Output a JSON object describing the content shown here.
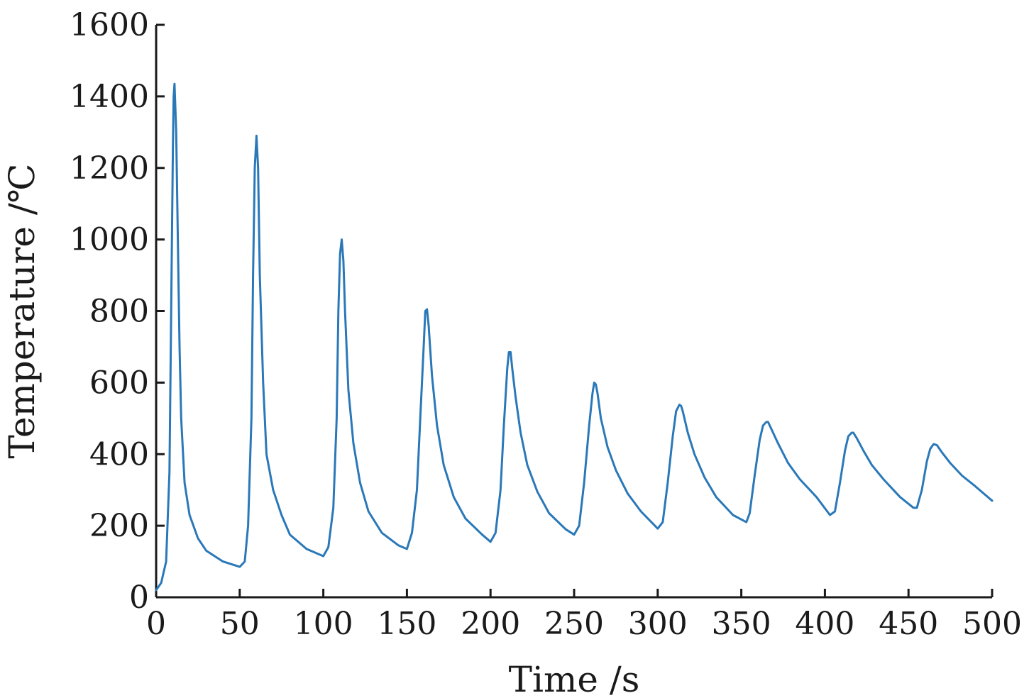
{
  "chart_data": {
    "type": "line",
    "title": "",
    "xlabel": "Time /s",
    "ylabel": "Temperature /℃",
    "xlim": [
      0,
      500
    ],
    "ylim": [
      0,
      1600
    ],
    "xticks": [
      0,
      50,
      100,
      150,
      200,
      250,
      300,
      350,
      400,
      450,
      500
    ],
    "yticks": [
      0,
      200,
      400,
      600,
      800,
      1000,
      1200,
      1400,
      1600
    ],
    "grid": false,
    "legend": "none",
    "colors": {
      "line": "#2a78b8",
      "axis": "#1a1a1a"
    },
    "series": [
      {
        "x": [
          0,
          3,
          6,
          8,
          9,
          10,
          10.5,
          11,
          12,
          13,
          14,
          15,
          17,
          20,
          25,
          30,
          40,
          50,
          53,
          55,
          57,
          58,
          59,
          60,
          61,
          62,
          64,
          66,
          70,
          75,
          80,
          90,
          100,
          103,
          106,
          108,
          109,
          110,
          111,
          112,
          113,
          115,
          118,
          122,
          127,
          135,
          145,
          150,
          153,
          156,
          158,
          160,
          161,
          162,
          163,
          165,
          168,
          172,
          178,
          185,
          195,
          200,
          203,
          206,
          208,
          210,
          211,
          212,
          213,
          215,
          218,
          222,
          228,
          235,
          245,
          250,
          253,
          256,
          259,
          261,
          262,
          263,
          264,
          266,
          270,
          275,
          282,
          290,
          300,
          303,
          306,
          309,
          311,
          313,
          314,
          315,
          318,
          322,
          328,
          335,
          345,
          353,
          355,
          358,
          361,
          363,
          365,
          366,
          368,
          372,
          378,
          385,
          395,
          403,
          406,
          409,
          412,
          414,
          416,
          417,
          419,
          423,
          428,
          435,
          445,
          453,
          455,
          458,
          461,
          463,
          465,
          467,
          470,
          475,
          482,
          490,
          500
        ],
        "y": [
          20,
          40,
          100,
          350,
          800,
          1250,
          1400,
          1435,
          1300,
          1000,
          700,
          500,
          320,
          230,
          165,
          130,
          100,
          85,
          100,
          200,
          500,
          900,
          1200,
          1290,
          1200,
          900,
          600,
          400,
          300,
          230,
          175,
          135,
          115,
          140,
          250,
          500,
          800,
          960,
          1000,
          940,
          800,
          580,
          430,
          320,
          240,
          180,
          145,
          135,
          180,
          300,
          500,
          700,
          800,
          805,
          760,
          620,
          480,
          370,
          280,
          220,
          175,
          155,
          180,
          300,
          480,
          640,
          685,
          685,
          640,
          560,
          460,
          370,
          295,
          235,
          190,
          175,
          200,
          320,
          480,
          570,
          600,
          595,
          570,
          500,
          420,
          355,
          290,
          240,
          192,
          210,
          320,
          450,
          520,
          538,
          535,
          520,
          460,
          400,
          335,
          280,
          230,
          210,
          235,
          340,
          440,
          480,
          490,
          490,
          470,
          430,
          375,
          330,
          280,
          230,
          240,
          320,
          410,
          450,
          460,
          460,
          445,
          410,
          370,
          330,
          280,
          250,
          250,
          300,
          380,
          415,
          428,
          425,
          405,
          375,
          340,
          310,
          270
        ]
      }
    ]
  }
}
